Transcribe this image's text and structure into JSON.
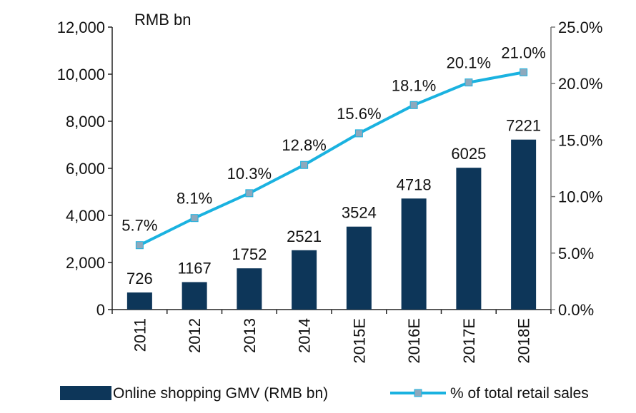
{
  "chart_data": {
    "type": "bar+line",
    "title": "",
    "unit_label": "RMB bn",
    "categories": [
      "2011",
      "2012",
      "2013",
      "2014",
      "2015E",
      "2016E",
      "2017E",
      "2018E"
    ],
    "series": [
      {
        "name": "Online shopping GMV (RMB bn)",
        "type": "bar",
        "axis": "left",
        "color": "#0d3659",
        "values": [
          726,
          1167,
          1752,
          2521,
          3524,
          4718,
          6025,
          7221
        ],
        "labels": [
          "726",
          "1167",
          "1752",
          "2521",
          "3524",
          "4718",
          "6025",
          "7221"
        ]
      },
      {
        "name": "% of total retail sales",
        "type": "line",
        "axis": "right",
        "color": "#1ab2e0",
        "marker_color": "#8ea9bd",
        "values": [
          5.7,
          8.1,
          10.3,
          12.8,
          15.6,
          18.1,
          20.1,
          21.0
        ],
        "labels": [
          "5.7%",
          "8.1%",
          "10.3%",
          "12.8%",
          "15.6%",
          "18.1%",
          "20.1%",
          "21.0%"
        ]
      }
    ],
    "y_left": {
      "ylim": [
        0,
        12000
      ],
      "ticks": [
        0,
        2000,
        4000,
        6000,
        8000,
        10000,
        12000
      ],
      "tick_labels": [
        "0",
        "2,000",
        "4,000",
        "6,000",
        "8,000",
        "10,000",
        "12,000"
      ]
    },
    "y_right": {
      "ylim": [
        0,
        25
      ],
      "ticks": [
        0,
        5,
        10,
        15,
        20,
        25
      ],
      "tick_labels": [
        "0.0%",
        "5.0%",
        "10.0%",
        "15.0%",
        "20.0%",
        "25.0%"
      ]
    },
    "grid": false,
    "legend": {
      "position": "bottom"
    }
  }
}
